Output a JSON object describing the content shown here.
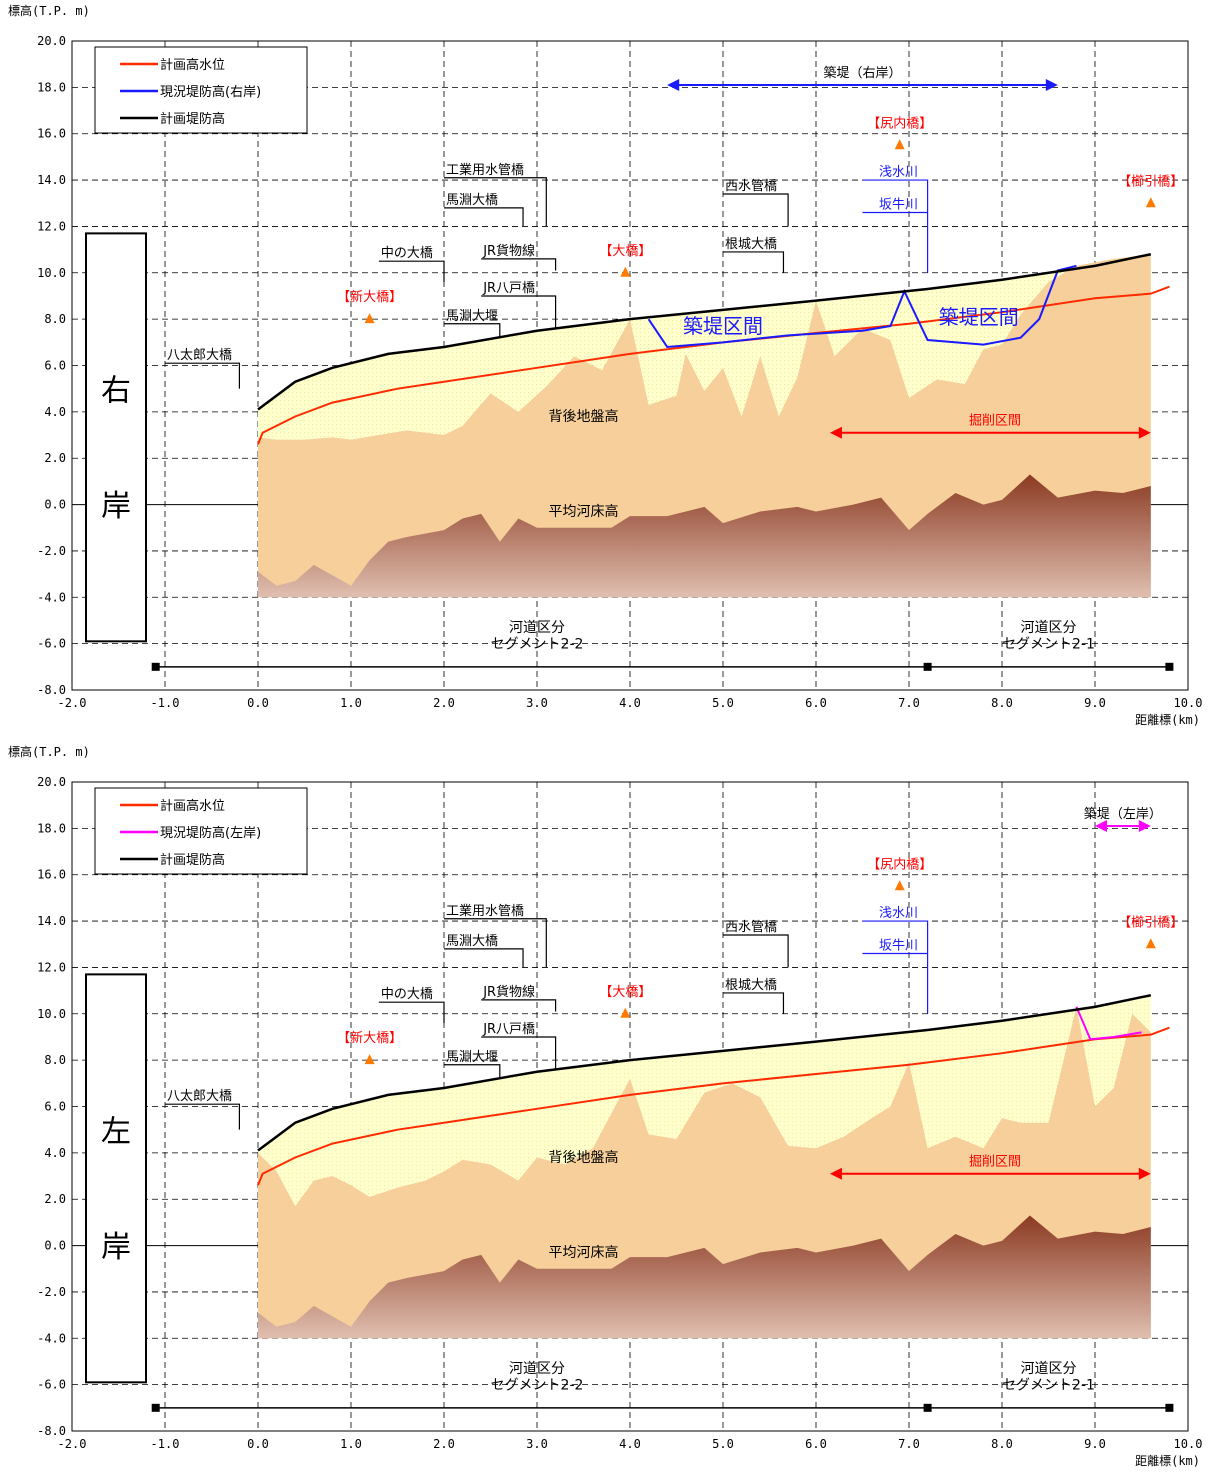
{
  "chart_data": [
    {
      "type": "area",
      "ylabel": "標高(T.P. m)",
      "xlabel": "距離標(km)",
      "xlim": [
        -2.0,
        10.0
      ],
      "ylim": [
        -8.0,
        20.0
      ],
      "x_ticks": [
        "-2.0",
        "-1.0",
        "0.0",
        "1.0",
        "2.0",
        "3.0",
        "4.0",
        "5.0",
        "6.0",
        "7.0",
        "8.0",
        "9.0",
        "10.0"
      ],
      "y_ticks": [
        "20.0",
        "18.0",
        "16.0",
        "14.0",
        "12.0",
        "10.0",
        "8.0",
        "6.0",
        "4.0",
        "2.0",
        "0.0",
        "-2.0",
        "-4.0",
        "-6.0",
        "-8.0"
      ],
      "grid": true,
      "legend_position": "top-left",
      "bank_label": [
        "右",
        "岸"
      ],
      "colors": {
        "hwl": "#ff2a00",
        "current_levee": "#1a1aff",
        "plan_levee": "#000000",
        "ground": "#f6cf9a",
        "riverbed": "#8b3a22"
      },
      "series": [
        {
          "name": "計画高水位",
          "color": "#ff2a00",
          "x": [
            0.0,
            0.05,
            0.4,
            0.8,
            1.5,
            2.0,
            3.0,
            4.0,
            5.0,
            6.0,
            7.0,
            8.0,
            9.0,
            9.6,
            9.8
          ],
          "values": [
            2.6,
            3.1,
            3.8,
            4.4,
            5.0,
            5.3,
            5.9,
            6.5,
            7.0,
            7.4,
            7.8,
            8.3,
            8.9,
            9.1,
            9.4
          ]
        },
        {
          "name": "現況堤防高(右岸)",
          "color": "#1a1aff",
          "x": [
            4.2,
            4.4,
            5.0,
            5.7,
            6.5,
            6.8,
            6.95,
            7.2,
            7.8,
            8.2,
            8.4,
            8.6,
            8.8
          ],
          "values": [
            8.0,
            6.8,
            7.0,
            7.3,
            7.5,
            7.7,
            9.2,
            7.1,
            6.9,
            7.2,
            8.0,
            10.1,
            10.3
          ]
        },
        {
          "name": "計画堤防高",
          "color": "#000000",
          "x": [
            0.0,
            0.4,
            0.8,
            1.4,
            2.0,
            3.0,
            4.0,
            5.0,
            6.0,
            7.2,
            8.0,
            9.0,
            9.6
          ],
          "values": [
            4.1,
            5.3,
            5.9,
            6.5,
            6.8,
            7.5,
            8.0,
            8.4,
            8.8,
            9.3,
            9.7,
            10.3,
            10.8
          ]
        }
      ],
      "ground": {
        "x": [
          0.0,
          0.2,
          0.5,
          0.8,
          1.0,
          1.3,
          1.6,
          2.0,
          2.2,
          2.5,
          2.8,
          3.1,
          3.4,
          3.7,
          4.0,
          4.2,
          4.5,
          4.6,
          4.8,
          5.0,
          5.2,
          5.4,
          5.6,
          5.8,
          6.0,
          6.2,
          6.5,
          6.8,
          7.0,
          7.3,
          7.6,
          7.8,
          8.0,
          8.2,
          8.5,
          8.8,
          9.2,
          9.6
        ],
        "values": [
          2.9,
          2.8,
          2.8,
          2.9,
          2.8,
          3.0,
          3.2,
          3.0,
          3.4,
          4.8,
          4.0,
          5.1,
          6.4,
          5.8,
          8.0,
          4.3,
          4.7,
          6.5,
          4.9,
          5.9,
          3.8,
          6.4,
          3.8,
          5.5,
          8.8,
          6.4,
          7.6,
          7.1,
          4.6,
          5.4,
          5.2,
          6.7,
          6.9,
          8.2,
          9.6,
          10.3,
          10.6,
          10.8
        ]
      },
      "riverbed": {
        "x": [
          0.0,
          0.2,
          0.4,
          0.6,
          1.0,
          1.2,
          1.4,
          1.6,
          2.0,
          2.2,
          2.4,
          2.6,
          2.8,
          3.0,
          3.4,
          3.8,
          4.0,
          4.4,
          4.8,
          5.0,
          5.4,
          5.8,
          6.0,
          6.4,
          6.7,
          7.0,
          7.2,
          7.5,
          7.8,
          8.0,
          8.3,
          8.6,
          9.0,
          9.3,
          9.6
        ],
        "values": [
          -2.9,
          -3.5,
          -3.3,
          -2.6,
          -3.5,
          -2.4,
          -1.6,
          -1.4,
          -1.1,
          -0.6,
          -0.4,
          -1.6,
          -0.6,
          -1.0,
          -1.0,
          -1.0,
          -0.5,
          -0.5,
          -0.1,
          -0.8,
          -0.3,
          -0.1,
          -0.3,
          0.0,
          0.3,
          -1.1,
          -0.4,
          0.5,
          0.0,
          0.2,
          1.3,
          0.3,
          0.6,
          0.5,
          0.8
        ]
      },
      "ground_bottom": -4.0,
      "annotations": {
        "bridges_black": [
          {
            "label": "八太郎大橋",
            "x": -1.0,
            "y": 6.1,
            "x2": -0.2,
            "y2": 5.0
          },
          {
            "label": "中の大橋",
            "x": 1.3,
            "y": 10.5,
            "x2": 2.0,
            "y2": 9.6
          },
          {
            "label": "馬淵大堰",
            "x": 2.0,
            "y": 7.8,
            "x2": 2.6,
            "y2": 7.2
          },
          {
            "label": "馬淵大橋",
            "x": 2.0,
            "y": 12.8,
            "x2": 2.85,
            "y2": 12.0
          },
          {
            "label": "工業用水管橋",
            "x": 2.0,
            "y": 14.1,
            "x2": 3.1,
            "y2": 12.0
          },
          {
            "label": "JR貨物線",
            "x": 2.4,
            "y": 10.6,
            "x2": 3.2,
            "y2": 10.1
          },
          {
            "label": "JR八戸橋",
            "x": 2.4,
            "y": 9.0,
            "x2": 3.2,
            "y2": 7.6
          },
          {
            "label": "西水管橋",
            "x": 5.0,
            "y": 13.4,
            "x2": 5.7,
            "y2": 12.0
          },
          {
            "label": "根城大橋",
            "x": 5.0,
            "y": 10.9,
            "x2": 5.65,
            "y2": 10.0
          }
        ],
        "bridges_red": [
          {
            "label": "【新大橋】",
            "x": 1.2,
            "y": 8.0
          },
          {
            "label": "【大橋】",
            "x": 3.95,
            "y": 10.0
          },
          {
            "label": "【尻内橋】",
            "x": 6.9,
            "y": 15.5
          },
          {
            "label": "【櫛引橋】",
            "x": 9.6,
            "y": 13.0
          }
        ],
        "tributaries": [
          {
            "label": "浅水川",
            "x": 6.5,
            "y": 14.0,
            "x2": 7.2,
            "y2": 10.0
          },
          {
            "label": "坂牛川",
            "x": 6.5,
            "y": 12.6
          }
        ],
        "text": [
          {
            "label": "背後地盤高",
            "x": 3.5,
            "y": 3.6
          },
          {
            "label": "平均河床高",
            "x": 3.5,
            "y": -0.5
          },
          {
            "label": "河道区分",
            "x": 3.0,
            "y": -5.5
          },
          {
            "label": "セグメント2-2",
            "x": 3.0,
            "y": -6.2
          },
          {
            "label": "河道区分",
            "x": 8.5,
            "y": -5.5
          },
          {
            "label": "セグメント2-1",
            "x": 8.5,
            "y": -6.2
          }
        ],
        "segment_markers_x": [
          -1.1,
          7.2,
          9.8
        ],
        "segment_line_y": -7.0,
        "excavation": {
          "label": "掘削区間",
          "x1": 6.15,
          "x2": 9.6,
          "y": 3.1
        },
        "embankment_arrow": {
          "label": "築堤（右岸）",
          "x1": 4.4,
          "x2": 8.6,
          "y": 18.1,
          "color": "#1a1aff"
        },
        "embankment_sections": [
          {
            "label": "築堤区間",
            "x": 5.0,
            "y": 7.4
          },
          {
            "label": "築堤区間",
            "x": 7.75,
            "y": 7.8
          }
        ]
      }
    },
    {
      "type": "area",
      "ylabel": "標高(T.P. m)",
      "xlabel": "距離標(km)",
      "xlim": [
        -2.0,
        10.0
      ],
      "ylim": [
        -8.0,
        20.0
      ],
      "x_ticks": [
        "-2.0",
        "-1.0",
        "0.0",
        "1.0",
        "2.0",
        "3.0",
        "4.0",
        "5.0",
        "6.0",
        "7.0",
        "8.0",
        "9.0",
        "10.0"
      ],
      "y_ticks": [
        "20.0",
        "18.0",
        "16.0",
        "14.0",
        "12.0",
        "10.0",
        "8.0",
        "6.0",
        "4.0",
        "2.0",
        "0.0",
        "-2.0",
        "-4.0",
        "-6.0",
        "-8.0"
      ],
      "grid": true,
      "legend_position": "top-left",
      "bank_label": [
        "左",
        "岸"
      ],
      "colors": {
        "hwl": "#ff2a00",
        "current_levee": "#ff00ff",
        "plan_levee": "#000000",
        "ground": "#f6cf9a",
        "riverbed": "#8b3a22"
      },
      "series": [
        {
          "name": "計画高水位",
          "color": "#ff2a00",
          "x": [
            0.0,
            0.05,
            0.4,
            0.8,
            1.5,
            2.0,
            3.0,
            4.0,
            5.0,
            6.0,
            7.0,
            8.0,
            9.0,
            9.6,
            9.8
          ],
          "values": [
            2.6,
            3.1,
            3.8,
            4.4,
            5.0,
            5.3,
            5.9,
            6.5,
            7.0,
            7.4,
            7.8,
            8.3,
            8.9,
            9.1,
            9.4
          ]
        },
        {
          "name": "現況堤防高(左岸)",
          "color": "#ff00ff",
          "x": [
            8.8,
            8.95,
            9.2,
            9.5
          ],
          "values": [
            10.3,
            8.9,
            9.0,
            9.2
          ]
        },
        {
          "name": "計画堤防高",
          "color": "#000000",
          "x": [
            0.0,
            0.4,
            0.8,
            1.4,
            2.0,
            3.0,
            4.0,
            5.0,
            6.0,
            7.2,
            8.0,
            9.0,
            9.6
          ],
          "values": [
            4.1,
            5.3,
            5.9,
            6.5,
            6.8,
            7.5,
            8.0,
            8.4,
            8.8,
            9.3,
            9.7,
            10.3,
            10.8
          ]
        }
      ],
      "ground": {
        "x": [
          0.0,
          0.2,
          0.4,
          0.6,
          0.8,
          1.0,
          1.2,
          1.5,
          1.8,
          2.0,
          2.2,
          2.5,
          2.8,
          3.0,
          3.3,
          3.6,
          4.0,
          4.2,
          4.5,
          4.8,
          5.1,
          5.4,
          5.7,
          6.0,
          6.3,
          6.6,
          6.8,
          7.0,
          7.2,
          7.5,
          7.8,
          8.0,
          8.2,
          8.5,
          8.8,
          9.0,
          9.2,
          9.4,
          9.6
        ],
        "values": [
          4.0,
          3.2,
          1.7,
          2.8,
          3.0,
          2.6,
          2.1,
          2.5,
          2.8,
          3.2,
          3.7,
          3.5,
          2.8,
          3.8,
          3.5,
          4.2,
          7.2,
          4.8,
          4.6,
          6.6,
          7.0,
          6.4,
          4.3,
          4.2,
          4.7,
          5.5,
          6.0,
          7.9,
          4.2,
          4.7,
          4.2,
          5.5,
          5.3,
          5.3,
          10.3,
          6.0,
          6.8,
          10.0,
          9.2
        ]
      },
      "riverbed": {
        "x": [
          0.0,
          0.2,
          0.4,
          0.6,
          1.0,
          1.2,
          1.4,
          1.6,
          2.0,
          2.2,
          2.4,
          2.6,
          2.8,
          3.0,
          3.4,
          3.8,
          4.0,
          4.4,
          4.8,
          5.0,
          5.4,
          5.8,
          6.0,
          6.4,
          6.7,
          7.0,
          7.2,
          7.5,
          7.8,
          8.0,
          8.3,
          8.6,
          9.0,
          9.3,
          9.6
        ],
        "values": [
          -2.9,
          -3.5,
          -3.3,
          -2.6,
          -3.5,
          -2.4,
          -1.6,
          -1.4,
          -1.1,
          -0.6,
          -0.4,
          -1.6,
          -0.6,
          -1.0,
          -1.0,
          -1.0,
          -0.5,
          -0.5,
          -0.1,
          -0.8,
          -0.3,
          -0.1,
          -0.3,
          0.0,
          0.3,
          -1.1,
          -0.4,
          0.5,
          0.0,
          0.2,
          1.3,
          0.3,
          0.6,
          0.5,
          0.8
        ]
      },
      "ground_bottom": -4.0,
      "annotations": {
        "bridges_black": [
          {
            "label": "八太郎大橋",
            "x": -1.0,
            "y": 6.1,
            "x2": -0.2,
            "y2": 5.0
          },
          {
            "label": "中の大橋",
            "x": 1.3,
            "y": 10.5,
            "x2": 2.0,
            "y2": 9.6
          },
          {
            "label": "馬淵大堰",
            "x": 2.0,
            "y": 7.8,
            "x2": 2.6,
            "y2": 7.2
          },
          {
            "label": "馬淵大橋",
            "x": 2.0,
            "y": 12.8,
            "x2": 2.85,
            "y2": 12.0
          },
          {
            "label": "工業用水管橋",
            "x": 2.0,
            "y": 14.1,
            "x2": 3.1,
            "y2": 12.0
          },
          {
            "label": "JR貨物線",
            "x": 2.4,
            "y": 10.6,
            "x2": 3.2,
            "y2": 10.1
          },
          {
            "label": "JR八戸橋",
            "x": 2.4,
            "y": 9.0,
            "x2": 3.2,
            "y2": 7.6
          },
          {
            "label": "西水管橋",
            "x": 5.0,
            "y": 13.4,
            "x2": 5.7,
            "y2": 12.0
          },
          {
            "label": "根城大橋",
            "x": 5.0,
            "y": 10.9,
            "x2": 5.65,
            "y2": 10.0
          }
        ],
        "bridges_red": [
          {
            "label": "【新大橋】",
            "x": 1.2,
            "y": 8.0
          },
          {
            "label": "【大橋】",
            "x": 3.95,
            "y": 10.0
          },
          {
            "label": "【尻内橋】",
            "x": 6.9,
            "y": 15.5
          },
          {
            "label": "【櫛引橋】",
            "x": 9.6,
            "y": 13.0
          }
        ],
        "tributaries": [
          {
            "label": "浅水川",
            "x": 6.5,
            "y": 14.0,
            "x2": 7.2,
            "y2": 10.0
          },
          {
            "label": "坂牛川",
            "x": 6.5,
            "y": 12.6
          }
        ],
        "text": [
          {
            "label": "背後地盤高",
            "x": 3.5,
            "y": 3.6
          },
          {
            "label": "平均河床高",
            "x": 3.5,
            "y": -0.5
          },
          {
            "label": "河道区分",
            "x": 3.0,
            "y": -5.5
          },
          {
            "label": "セグメント2-2",
            "x": 3.0,
            "y": -6.2
          },
          {
            "label": "河道区分",
            "x": 8.5,
            "y": -5.5
          },
          {
            "label": "セグメント2-1",
            "x": 8.5,
            "y": -6.2
          }
        ],
        "segment_markers_x": [
          -1.1,
          7.2,
          9.8
        ],
        "segment_line_y": -7.0,
        "excavation": {
          "label": "掘削区間",
          "x1": 6.15,
          "x2": 9.6,
          "y": 3.1
        },
        "embankment_arrow": {
          "label": "築堤（左岸）",
          "x1": 9.0,
          "x2": 9.6,
          "y": 18.1,
          "color": "#ff00ff"
        },
        "embankment_sections": []
      }
    }
  ]
}
